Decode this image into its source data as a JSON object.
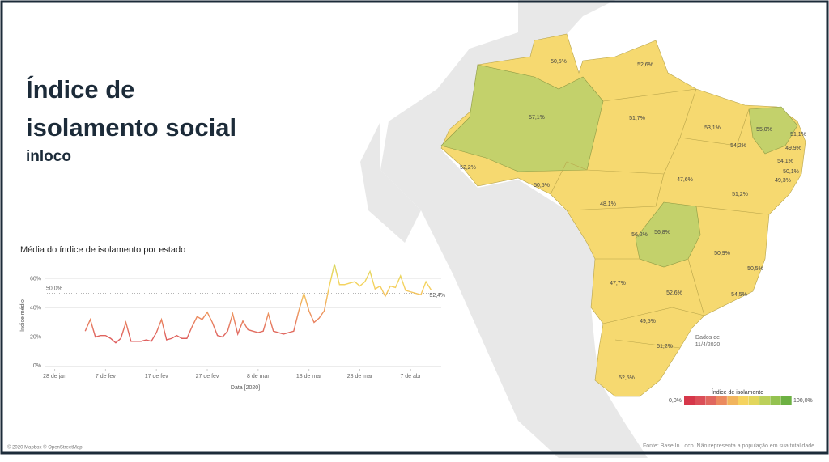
{
  "header": {
    "title_line1": "Índice de",
    "title_line2": "isolamento social",
    "subtitle": "inloco"
  },
  "chart_data": {
    "type": "line",
    "title": "Média do índice de isolamento por estado",
    "x": [
      34,
      35,
      36,
      37,
      38,
      39,
      40,
      41,
      42,
      43,
      44,
      45,
      46,
      47,
      48,
      49,
      50,
      51,
      52,
      53,
      54,
      55,
      56,
      57,
      58,
      59,
      60,
      61,
      62,
      63,
      64,
      65,
      66,
      67,
      68,
      69,
      70,
      71,
      72,
      73,
      74,
      75,
      76,
      77,
      78,
      79,
      80,
      81,
      82,
      83,
      84,
      85,
      86,
      87,
      88,
      89,
      90,
      91,
      92,
      93,
      94,
      95,
      96,
      97,
      98,
      99,
      100,
      101,
      102
    ],
    "values": [
      24,
      32,
      20,
      21,
      21,
      19,
      16,
      19,
      30,
      17,
      17,
      17,
      18,
      17,
      23,
      32,
      18,
      19,
      21,
      19,
      19,
      27,
      34,
      32,
      37,
      30,
      21,
      20,
      24,
      36,
      22,
      31,
      25,
      24,
      23,
      24,
      36,
      24,
      23,
      22,
      23,
      24,
      38,
      50,
      38,
      30,
      33,
      38,
      55,
      70,
      56,
      56,
      57,
      58,
      55,
      58,
      65,
      53,
      55,
      48,
      55,
      54,
      62,
      52,
      51,
      50,
      49,
      58,
      52.4
    ],
    "xlim": [
      26,
      104
    ],
    "xticks": [
      {
        "value": 28,
        "label": "28 de jan"
      },
      {
        "value": 38,
        "label": "7 de fev"
      },
      {
        "value": 48,
        "label": "17 de fev"
      },
      {
        "value": 58,
        "label": "27 de fev"
      },
      {
        "value": 68,
        "label": "8 de mar"
      },
      {
        "value": 78,
        "label": "18 de mar"
      },
      {
        "value": 88,
        "label": "28 de mar"
      },
      {
        "value": 98,
        "label": "7 de abr"
      }
    ],
    "ylim": [
      -2,
      72
    ],
    "yticks": [
      {
        "value": 0,
        "label": "0%"
      },
      {
        "value": 20,
        "label": "20%"
      },
      {
        "value": 40,
        "label": "40%"
      },
      {
        "value": 60,
        "label": "60%"
      }
    ],
    "xlabel": "Data [2020]",
    "ylabel": "Índice médio",
    "reference": {
      "value": 50,
      "label": "50,0%"
    },
    "last_value_label": "52,4%",
    "grid": true
  },
  "map": {
    "labels": [
      "50,5%",
      "52,6%",
      "57,1%",
      "51,7%",
      "53,1%",
      "55,0%",
      "51,1%",
      "49,9%",
      "54,2%",
      "54,1%",
      "50,1%",
      "49,3%",
      "52,2%",
      "50,5%",
      "47,6%",
      "51,2%",
      "48,1%",
      "56,2%",
      "56,8%",
      "50,9%",
      "50,5%",
      "47,7%",
      "52,6%",
      "54,5%",
      "49,5%",
      "51,2%",
      "52,5%"
    ],
    "legend_title": "Índice de isolamento",
    "legend_min": "0,0%",
    "legend_max": "100,0%",
    "color_scale": [
      "#d6374a",
      "#db4f58",
      "#e0675f",
      "#eb8a5f",
      "#f1b45d",
      "#f5d35f",
      "#e2d65c",
      "#bcd05a",
      "#94c250",
      "#6db143"
    ],
    "note_line1": "Dados de",
    "note_line2": "11/4/2020"
  },
  "footer": {
    "credit": "© 2020 Mapbox © OpenStreetMap",
    "source": "Fonte: Base In Loco. Não representa a população em sua totalidade."
  }
}
